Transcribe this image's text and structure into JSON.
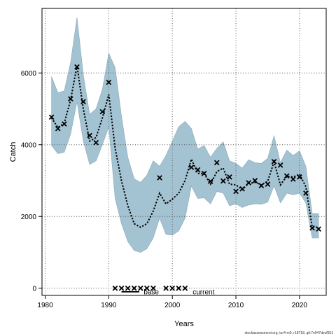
{
  "chart_data": {
    "type": "line",
    "xlabel": "Years",
    "ylabel": "Catch",
    "xlim": [
      1979.5,
      2024.2
    ],
    "ylim": [
      -200,
      7800
    ],
    "x_ticks": [
      1980,
      1990,
      2000,
      2010,
      2020
    ],
    "y_ticks": [
      0,
      2000,
      4000,
      6000
    ],
    "grid": true,
    "band_color": "#a3c3d3",
    "band_edge_color": "#8aa9b8",
    "line_color": "#000000",
    "marker_color": "#000000",
    "band": {
      "x": [
        1981,
        1982,
        1983,
        1984,
        1985,
        1986,
        1987,
        1988,
        1989,
        1990,
        1991,
        1992,
        1993,
        1994,
        1995,
        1996,
        1997,
        1998,
        1999,
        2000,
        2001,
        2002,
        2003,
        2004,
        2005,
        2006,
        2007,
        2008,
        2009,
        2010,
        2011,
        2012,
        2013,
        2014,
        2015,
        2016,
        2017,
        2018,
        2019,
        2020,
        2021,
        2022,
        2023
      ],
      "lower": [
        3980,
        3750,
        3790,
        4300,
        5200,
        4100,
        3450,
        3550,
        4000,
        4500,
        2500,
        1800,
        1300,
        1050,
        1000,
        1100,
        1400,
        1950,
        1500,
        1480,
        1600,
        1950,
        2850,
        2500,
        2520,
        2350,
        2700,
        2650,
        2300,
        2350,
        2250,
        2320,
        2350,
        2340,
        2400,
        2850,
        2380,
        2650,
        2600,
        2650,
        2380,
        1400,
        1400
      ],
      "upper": [
        5900,
        5450,
        5500,
        6300,
        7550,
        5950,
        4850,
        5000,
        5550,
        6550,
        6150,
        4800,
        3650,
        3050,
        2950,
        3150,
        3550,
        3400,
        3700,
        4100,
        4500,
        4650,
        4450,
        3880,
        3980,
        3650,
        3900,
        4080,
        3550,
        3480,
        3350,
        3580,
        3500,
        3480,
        3620,
        4250,
        3500,
        3850,
        3700,
        3830,
        3400,
        2080,
        2080
      ]
    },
    "series": [
      {
        "type": "line",
        "x": [
          1981,
          1982,
          1983,
          1984,
          1985,
          1986,
          1987,
          1988,
          1989,
          1990,
          1991,
          1992,
          1993,
          1994,
          1995,
          1996,
          1997,
          1998,
          1999,
          2000,
          2001,
          2002,
          2003,
          2004,
          2005,
          2006,
          2007,
          2008,
          2009,
          2010,
          2011,
          2012,
          2013,
          2014,
          2015,
          2016,
          2017,
          2018,
          2019,
          2020,
          2021,
          2022,
          2023
        ],
        "y": [
          4750,
          4480,
          4600,
          5250,
          6200,
          5000,
          4100,
          4200,
          4750,
          5400,
          3900,
          3000,
          2300,
          1800,
          1700,
          1800,
          2150,
          2650,
          2350,
          2480,
          2650,
          3000,
          3600,
          3200,
          3200,
          2900,
          3250,
          3350,
          2900,
          2880,
          2750,
          2920,
          2950,
          2880,
          2980,
          3520,
          2880,
          3120,
          3100,
          3180,
          2830,
          1700,
          1700
        ]
      },
      {
        "type": "scatter",
        "x": [
          1981,
          1982,
          1983,
          1984,
          1985,
          1986,
          1987,
          1988,
          1989,
          1990,
          1998,
          2003,
          2004,
          2005,
          2006,
          2007,
          2008,
          2009,
          2010,
          2011,
          2012,
          2013,
          2014,
          2015,
          2016,
          2017,
          2018,
          2019,
          2020,
          2021,
          2022,
          2023
        ],
        "y": [
          4770,
          4450,
          4580,
          5280,
          6170,
          5200,
          4260,
          4060,
          4920,
          5740,
          3080,
          3370,
          3300,
          3200,
          2980,
          3500,
          2990,
          3100,
          2700,
          2770,
          2940,
          3000,
          2860,
          2900,
          3530,
          3430,
          3130,
          3040,
          3100,
          2650,
          1680,
          1650
        ]
      },
      {
        "type": "scatter",
        "x": [
          1991,
          1992,
          1993,
          1994,
          1995,
          1996,
          1997,
          1999,
          2000,
          2001,
          2002
        ],
        "y": [
          0,
          0,
          0,
          0,
          0,
          0,
          0,
          0,
          0,
          0,
          0
        ]
      }
    ],
    "annotations": [
      {
        "text": "base",
        "x": 1995.5,
        "y": -100
      },
      {
        "text": "current",
        "x": 2003.2,
        "y": -100
      }
    ],
    "footer": "stockassessment.org, tur4-m0, r18718, git:7e947decf551"
  }
}
